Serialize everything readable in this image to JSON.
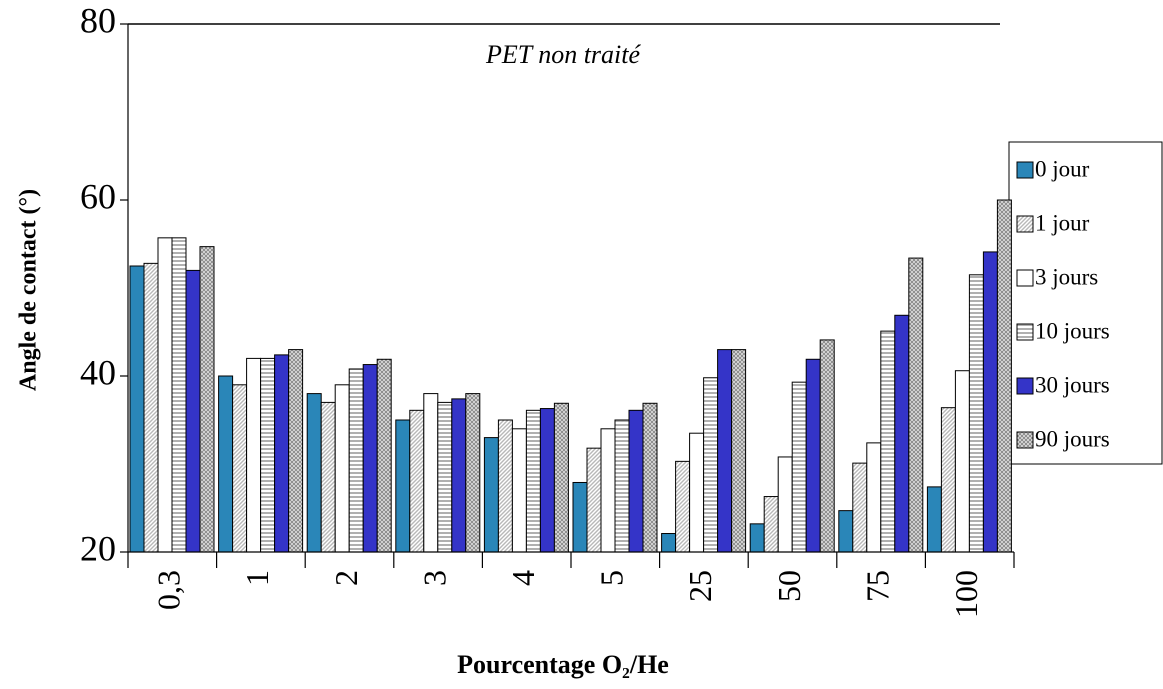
{
  "chart_data": {
    "type": "bar",
    "annotation": "PET non traité",
    "x_label": "Pourcentage O₂/He",
    "y_label": "Angle de contact (°)",
    "categories": [
      "0,3",
      "1",
      "2",
      "3",
      "4",
      "5",
      "25",
      "50",
      "75",
      "100"
    ],
    "series": [
      {
        "name": "0 jour",
        "color": "#2a86b8",
        "pattern": "solid",
        "values": [
          52.5,
          40,
          38,
          35,
          33,
          27.9,
          22.1,
          23.2,
          24.7,
          27.4
        ]
      },
      {
        "name": "1 jour",
        "color": "#b8b8b8",
        "pattern": "diagonal",
        "values": [
          52.8,
          39,
          37,
          36.1,
          35,
          31.8,
          30.3,
          26.3,
          30.1,
          36.4
        ]
      },
      {
        "name": "3 jours",
        "color": "#ffffff",
        "pattern": "solid",
        "values": [
          55.7,
          42,
          39,
          38,
          34,
          34,
          33.5,
          30.8,
          32.4,
          40.6
        ]
      },
      {
        "name": "10 jours",
        "color": "#b0b0b0",
        "pattern": "horizontal",
        "values": [
          55.7,
          42,
          40.8,
          37,
          36.1,
          35,
          39.8,
          39.3,
          45.1,
          51.5
        ]
      },
      {
        "name": "30 jours",
        "color": "#3434c8",
        "pattern": "solid",
        "values": [
          52,
          42.4,
          41.3,
          37.4,
          36.3,
          36.1,
          43,
          41.9,
          46.9,
          54.1
        ]
      },
      {
        "name": "90 jours",
        "color": "#808080",
        "pattern": "cross",
        "values": [
          54.7,
          43,
          41.9,
          38,
          36.9,
          36.9,
          43,
          44.1,
          53.4,
          60
        ]
      }
    ],
    "ylim": [
      20,
      80
    ],
    "yticks": [
      20,
      40,
      60,
      80
    ],
    "legend": "right"
  }
}
